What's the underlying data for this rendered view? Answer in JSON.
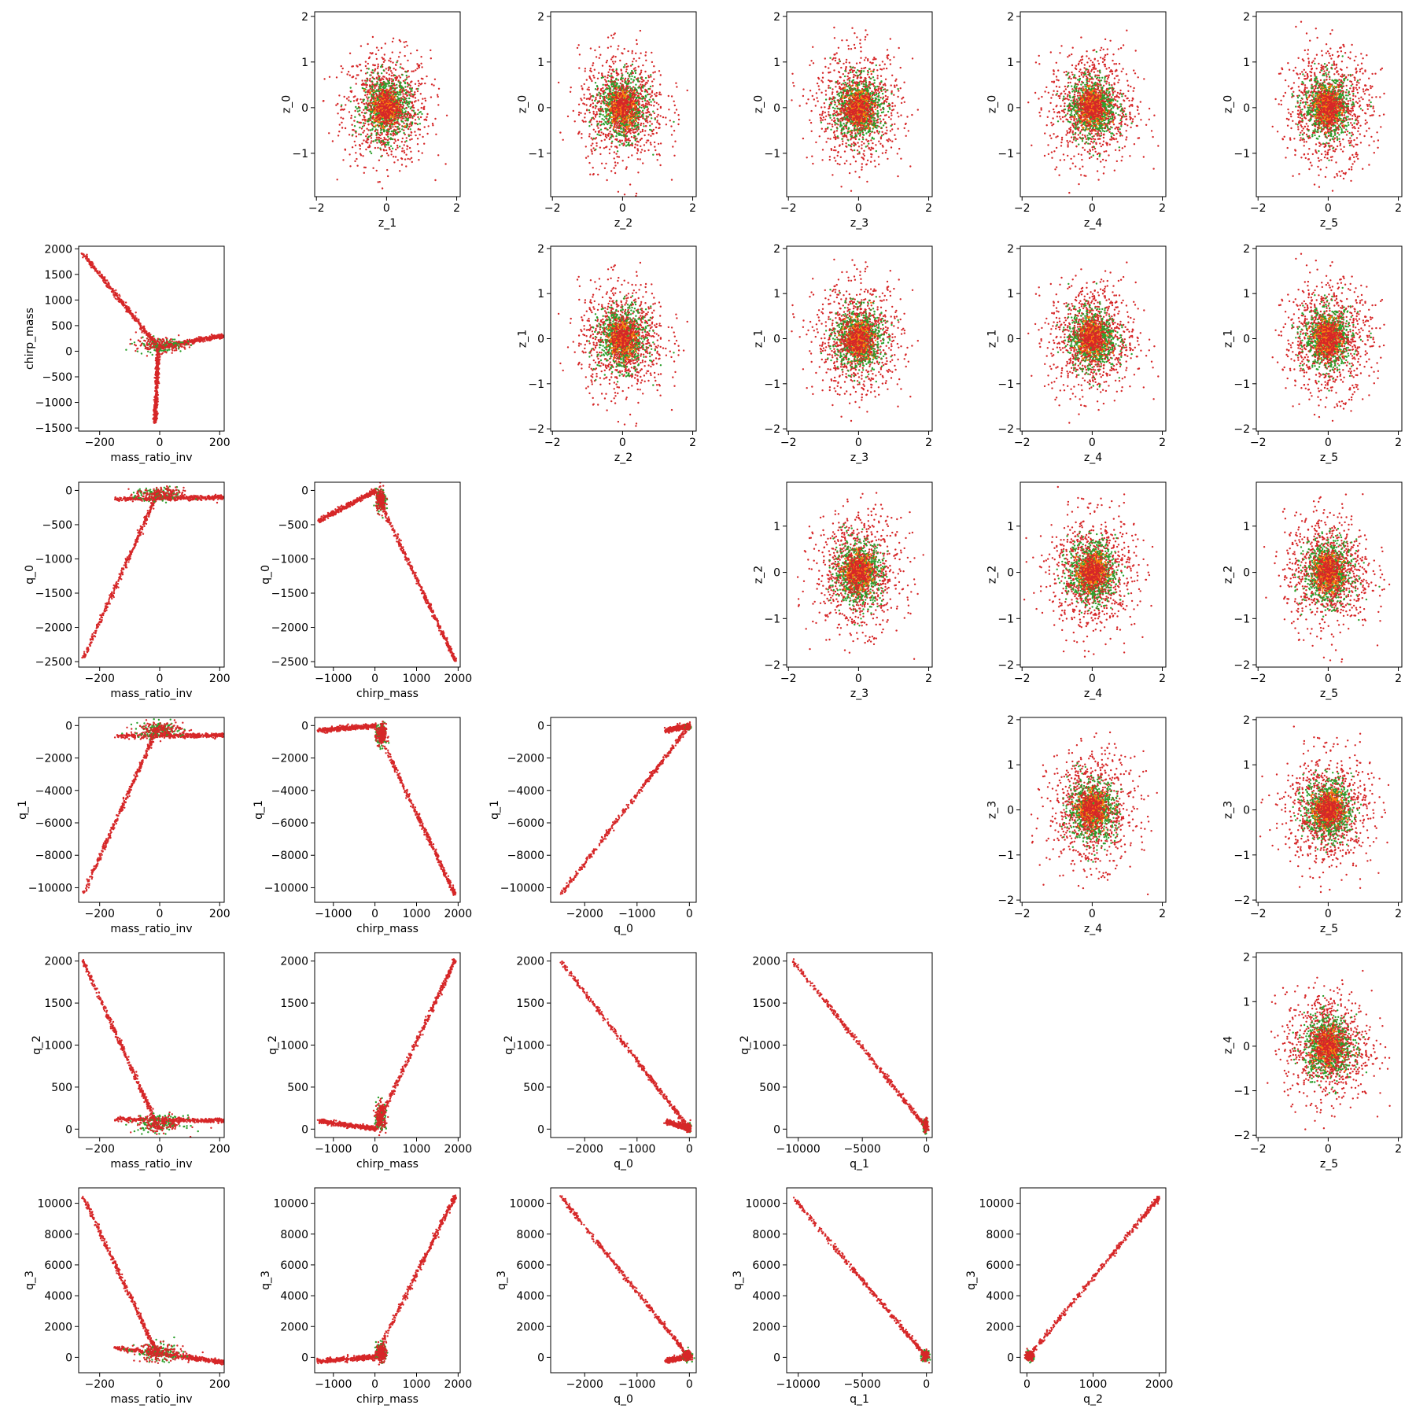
{
  "colors": {
    "red": "#d62728",
    "green": "#2ca02c",
    "orange": "#ff7f0e"
  },
  "chart_data": [
    {
      "type": "scatter",
      "row": 0,
      "col": 1,
      "xlabel": "z_1",
      "ylabel": "z_0",
      "xlim": [
        -2.05,
        2.1
      ],
      "ylim": [
        -1.95,
        2.1
      ],
      "xticks": [
        -2,
        0,
        2
      ],
      "yticks": [
        -1,
        0,
        1,
        2
      ],
      "pattern": "blob",
      "spread": [
        0.62,
        0.62
      ]
    },
    {
      "type": "scatter",
      "row": 0,
      "col": 2,
      "xlabel": "z_2",
      "ylabel": "z_0",
      "xlim": [
        -2.05,
        2.1
      ],
      "ylim": [
        -1.95,
        2.1
      ],
      "xticks": [
        -2,
        0,
        2
      ],
      "yticks": [
        -1,
        0,
        1,
        2
      ],
      "pattern": "blob",
      "spread": [
        0.62,
        0.62
      ]
    },
    {
      "type": "scatter",
      "row": 0,
      "col": 3,
      "xlabel": "z_3",
      "ylabel": "z_0",
      "xlim": [
        -2.05,
        2.1
      ],
      "ylim": [
        -1.95,
        2.1
      ],
      "xticks": [
        -2,
        0,
        2
      ],
      "yticks": [
        -1,
        0,
        1,
        2
      ],
      "pattern": "blob",
      "spread": [
        0.62,
        0.62
      ]
    },
    {
      "type": "scatter",
      "row": 0,
      "col": 4,
      "xlabel": "z_4",
      "ylabel": "z_0",
      "xlim": [
        -2.05,
        2.1
      ],
      "ylim": [
        -1.95,
        2.1
      ],
      "xticks": [
        -2,
        0,
        2
      ],
      "yticks": [
        -1,
        0,
        1,
        2
      ],
      "pattern": "blob",
      "spread": [
        0.62,
        0.62
      ]
    },
    {
      "type": "scatter",
      "row": 0,
      "col": 5,
      "xlabel": "z_5",
      "ylabel": "z_0",
      "xlim": [
        -2.05,
        2.1
      ],
      "ylim": [
        -1.95,
        2.1
      ],
      "xticks": [
        -2,
        0,
        2
      ],
      "yticks": [
        -1,
        0,
        1,
        2
      ],
      "pattern": "blob",
      "spread": [
        0.62,
        0.62
      ]
    },
    {
      "type": "scatter",
      "row": 1,
      "col": 0,
      "xlabel": "mass_ratio_inv",
      "ylabel": "chirp_mass",
      "xlim": [
        -270,
        215
      ],
      "ylim": [
        -1560,
        2050
      ],
      "xticks": [
        -200,
        0,
        200
      ],
      "yticks": [
        -1500,
        -1000,
        -500,
        0,
        500,
        1000,
        1500,
        2000
      ],
      "pattern": "lines",
      "segments": [
        {
          "from": [
            -255,
            1900
          ],
          "to": [
            -5,
            80
          ]
        },
        {
          "from": [
            -5,
            60
          ],
          "to": [
            -15,
            -1370
          ]
        },
        {
          "from": [
            -5,
            80
          ],
          "to": [
            210,
            300
          ]
        }
      ],
      "cluster": {
        "center": [
          0,
          120
        ],
        "spread": [
          40,
          70
        ]
      }
    },
    {
      "type": "scatter",
      "row": 1,
      "col": 2,
      "xlabel": "z_2",
      "ylabel": "z_1",
      "xlim": [
        -2.05,
        2.1
      ],
      "ylim": [
        -2.05,
        2.05
      ],
      "xticks": [
        -2,
        0,
        2
      ],
      "yticks": [
        -2,
        -1,
        0,
        1,
        2
      ],
      "pattern": "blob",
      "spread": [
        0.62,
        0.62
      ]
    },
    {
      "type": "scatter",
      "row": 1,
      "col": 3,
      "xlabel": "z_3",
      "ylabel": "z_1",
      "xlim": [
        -2.05,
        2.1
      ],
      "ylim": [
        -2.05,
        2.05
      ],
      "xticks": [
        -2,
        0,
        2
      ],
      "yticks": [
        -2,
        -1,
        0,
        1,
        2
      ],
      "pattern": "blob",
      "spread": [
        0.62,
        0.62
      ]
    },
    {
      "type": "scatter",
      "row": 1,
      "col": 4,
      "xlabel": "z_4",
      "ylabel": "z_1",
      "xlim": [
        -2.05,
        2.1
      ],
      "ylim": [
        -2.05,
        2.05
      ],
      "xticks": [
        -2,
        0,
        2
      ],
      "yticks": [
        -2,
        -1,
        0,
        1,
        2
      ],
      "pattern": "blob",
      "spread": [
        0.62,
        0.62
      ]
    },
    {
      "type": "scatter",
      "row": 1,
      "col": 5,
      "xlabel": "z_5",
      "ylabel": "z_1",
      "xlim": [
        -2.05,
        2.1
      ],
      "ylim": [
        -2.05,
        2.05
      ],
      "xticks": [
        -2,
        0,
        2
      ],
      "yticks": [
        -2,
        -1,
        0,
        1,
        2
      ],
      "pattern": "blob",
      "spread": [
        0.62,
        0.62
      ]
    },
    {
      "type": "scatter",
      "row": 2,
      "col": 0,
      "xlabel": "mass_ratio_inv",
      "ylabel": "q_0",
      "xlim": [
        -270,
        215
      ],
      "ylim": [
        -2580,
        120
      ],
      "xticks": [
        -200,
        0,
        200
      ],
      "yticks": [
        -2500,
        -2000,
        -1500,
        -1000,
        -500,
        0
      ],
      "pattern": "lines",
      "segments": [
        {
          "from": [
            -255,
            -2450
          ],
          "to": [
            -5,
            -30
          ]
        },
        {
          "from": [
            -150,
            -130
          ],
          "to": [
            210,
            -100
          ]
        }
      ],
      "cluster": {
        "center": [
          0,
          -60
        ],
        "spread": [
          40,
          50
        ]
      }
    },
    {
      "type": "scatter",
      "row": 2,
      "col": 1,
      "xlabel": "chirp_mass",
      "ylabel": "q_0",
      "xlim": [
        -1450,
        2050
      ],
      "ylim": [
        -2580,
        120
      ],
      "xticks": [
        -1000,
        0,
        1000,
        2000
      ],
      "yticks": [
        -2500,
        -2000,
        -1500,
        -1000,
        -500,
        0
      ],
      "pattern": "lines",
      "segments": [
        {
          "from": [
            -1370,
            -450
          ],
          "to": [
            0,
            -10
          ]
        },
        {
          "from": [
            0,
            -10
          ],
          "to": [
            1920,
            -2470
          ]
        }
      ],
      "cluster": {
        "center": [
          150,
          -150
        ],
        "spread": [
          60,
          80
        ]
      }
    },
    {
      "type": "scatter",
      "row": 2,
      "col": 3,
      "xlabel": "z_3",
      "ylabel": "z_2",
      "xlim": [
        -2.05,
        2.1
      ],
      "ylim": [
        -2.05,
        1.95
      ],
      "xticks": [
        -2,
        0,
        2
      ],
      "yticks": [
        -2,
        -1,
        0,
        1
      ],
      "pattern": "blob",
      "spread": [
        0.62,
        0.62
      ]
    },
    {
      "type": "scatter",
      "row": 2,
      "col": 4,
      "xlabel": "z_4",
      "ylabel": "z_2",
      "xlim": [
        -2.05,
        2.1
      ],
      "ylim": [
        -2.05,
        1.95
      ],
      "xticks": [
        -2,
        0,
        2
      ],
      "yticks": [
        -2,
        -1,
        0,
        1
      ],
      "pattern": "blob",
      "spread": [
        0.62,
        0.62
      ]
    },
    {
      "type": "scatter",
      "row": 2,
      "col": 5,
      "xlabel": "z_5",
      "ylabel": "z_2",
      "xlim": [
        -2.05,
        2.1
      ],
      "ylim": [
        -2.05,
        1.95
      ],
      "xticks": [
        -2,
        0,
        2
      ],
      "yticks": [
        -2,
        -1,
        0,
        1
      ],
      "pattern": "blob",
      "spread": [
        0.62,
        0.62
      ]
    },
    {
      "type": "scatter",
      "row": 3,
      "col": 0,
      "xlabel": "mass_ratio_inv",
      "ylabel": "q_1",
      "xlim": [
        -270,
        215
      ],
      "ylim": [
        -10900,
        500
      ],
      "xticks": [
        -200,
        0,
        200
      ],
      "yticks": [
        -10000,
        -8000,
        -6000,
        -4000,
        -2000,
        0
      ],
      "pattern": "lines",
      "segments": [
        {
          "from": [
            -255,
            -10400
          ],
          "to": [
            -5,
            -50
          ]
        },
        {
          "from": [
            -150,
            -650
          ],
          "to": [
            210,
            -600
          ]
        }
      ],
      "cluster": {
        "center": [
          0,
          -250
        ],
        "spread": [
          40,
          250
        ]
      }
    },
    {
      "type": "scatter",
      "row": 3,
      "col": 1,
      "xlabel": "chirp_mass",
      "ylabel": "q_1",
      "xlim": [
        -1450,
        2050
      ],
      "ylim": [
        -10900,
        500
      ],
      "xticks": [
        -1000,
        0,
        1000,
        2000
      ],
      "yticks": [
        -10000,
        -8000,
        -6000,
        -4000,
        -2000,
        0
      ],
      "pattern": "lines",
      "segments": [
        {
          "from": [
            -1370,
            -300
          ],
          "to": [
            0,
            -20
          ]
        },
        {
          "from": [
            0,
            -20
          ],
          "to": [
            1920,
            -10400
          ]
        }
      ],
      "cluster": {
        "center": [
          150,
          -600
        ],
        "spread": [
          60,
          350
        ]
      }
    },
    {
      "type": "scatter",
      "row": 3,
      "col": 2,
      "xlabel": "q_0",
      "ylabel": "q_1",
      "xlim": [
        -2650,
        130
      ],
      "ylim": [
        -10900,
        500
      ],
      "xticks": [
        -2000,
        -1000,
        0
      ],
      "yticks": [
        -10000,
        -8000,
        -6000,
        -4000,
        -2000,
        0
      ],
      "pattern": "lines",
      "segments": [
        {
          "from": [
            -2450,
            -10400
          ],
          "to": [
            -10,
            -20
          ]
        },
        {
          "from": [
            -450,
            -300
          ],
          "to": [
            -10,
            -20
          ]
        }
      ],
      "cluster": {
        "center": [
          -20,
          -80
        ],
        "spread": [
          20,
          60
        ]
      }
    },
    {
      "type": "scatter",
      "row": 3,
      "col": 4,
      "xlabel": "z_4",
      "ylabel": "z_3",
      "xlim": [
        -2.05,
        2.1
      ],
      "ylim": [
        -2.05,
        2.05
      ],
      "xticks": [
        -2,
        0,
        2
      ],
      "yticks": [
        -2,
        -1,
        0,
        1,
        2
      ],
      "pattern": "blob",
      "spread": [
        0.62,
        0.62
      ]
    },
    {
      "type": "scatter",
      "row": 3,
      "col": 5,
      "xlabel": "z_5",
      "ylabel": "z_3",
      "xlim": [
        -2.05,
        2.1
      ],
      "ylim": [
        -2.05,
        2.05
      ],
      "xticks": [
        -2,
        0,
        2
      ],
      "yticks": [
        -2,
        -1,
        0,
        1,
        2
      ],
      "pattern": "blob",
      "spread": [
        0.62,
        0.62
      ]
    },
    {
      "type": "scatter",
      "row": 4,
      "col": 0,
      "xlabel": "mass_ratio_inv",
      "ylabel": "q_2",
      "xlim": [
        -270,
        215
      ],
      "ylim": [
        -100,
        2100
      ],
      "xticks": [
        -200,
        0,
        200
      ],
      "yticks": [
        0,
        500,
        1000,
        1500,
        2000
      ],
      "pattern": "lines",
      "segments": [
        {
          "from": [
            -255,
            2000
          ],
          "to": [
            -5,
            20
          ]
        },
        {
          "from": [
            -150,
            120
          ],
          "to": [
            210,
            100
          ]
        }
      ],
      "cluster": {
        "center": [
          0,
          60
        ],
        "spread": [
          40,
          50
        ]
      }
    },
    {
      "type": "scatter",
      "row": 4,
      "col": 1,
      "xlabel": "chirp_mass",
      "ylabel": "q_2",
      "xlim": [
        -1450,
        2050
      ],
      "ylim": [
        -100,
        2100
      ],
      "xticks": [
        -1000,
        0,
        1000,
        2000
      ],
      "yticks": [
        0,
        500,
        1000,
        1500,
        2000
      ],
      "pattern": "lines",
      "segments": [
        {
          "from": [
            -1370,
            95
          ],
          "to": [
            0,
            5
          ]
        },
        {
          "from": [
            0,
            5
          ],
          "to": [
            1920,
            2000
          ]
        }
      ],
      "cluster": {
        "center": [
          150,
          150
        ],
        "spread": [
          60,
          80
        ]
      }
    },
    {
      "type": "scatter",
      "row": 4,
      "col": 2,
      "xlabel": "q_0",
      "ylabel": "q_2",
      "xlim": [
        -2650,
        130
      ],
      "ylim": [
        -100,
        2100
      ],
      "xticks": [
        -2000,
        -1000,
        0
      ],
      "yticks": [
        0,
        500,
        1000,
        1500,
        2000
      ],
      "pattern": "lines",
      "segments": [
        {
          "from": [
            -2450,
            1990
          ],
          "to": [
            -10,
            10
          ]
        },
        {
          "from": [
            -450,
            90
          ],
          "to": [
            -10,
            10
          ]
        }
      ],
      "cluster": {
        "center": [
          -20,
          20
        ],
        "spread": [
          20,
          20
        ]
      }
    },
    {
      "type": "scatter",
      "row": 4,
      "col": 3,
      "xlabel": "q_1",
      "ylabel": "q_2",
      "xlim": [
        -10900,
        450
      ],
      "ylim": [
        -100,
        2100
      ],
      "xticks": [
        -10000,
        -5000,
        0
      ],
      "yticks": [
        0,
        500,
        1000,
        1500,
        2000
      ],
      "pattern": "lines",
      "segments": [
        {
          "from": [
            -10400,
            2000
          ],
          "to": [
            -30,
            20
          ]
        }
      ],
      "cluster": {
        "center": [
          -60,
          40
        ],
        "spread": [
          80,
          40
        ]
      }
    },
    {
      "type": "scatter",
      "row": 4,
      "col": 5,
      "xlabel": "z_5",
      "ylabel": "z_4",
      "xlim": [
        -2.05,
        2.1
      ],
      "ylim": [
        -2.05,
        2.1
      ],
      "xticks": [
        -2,
        0,
        2
      ],
      "yticks": [
        -2,
        -1,
        0,
        1,
        2
      ],
      "pattern": "blob",
      "spread": [
        0.62,
        0.62
      ]
    },
    {
      "type": "scatter",
      "row": 5,
      "col": 0,
      "xlabel": "mass_ratio_inv",
      "ylabel": "q_3",
      "xlim": [
        -270,
        215
      ],
      "ylim": [
        -1000,
        11000
      ],
      "xticks": [
        -200,
        0,
        200
      ],
      "yticks": [
        0,
        2000,
        4000,
        6000,
        8000,
        10000
      ],
      "pattern": "lines",
      "segments": [
        {
          "from": [
            -255,
            10400
          ],
          "to": [
            -5,
            100
          ]
        },
        {
          "from": [
            -150,
            600
          ],
          "to": [
            210,
            -300
          ]
        }
      ],
      "cluster": {
        "center": [
          0,
          300
        ],
        "spread": [
          40,
          300
        ]
      }
    },
    {
      "type": "scatter",
      "row": 5,
      "col": 1,
      "xlabel": "chirp_mass",
      "ylabel": "q_3",
      "xlim": [
        -1450,
        2050
      ],
      "ylim": [
        -1000,
        11000
      ],
      "xticks": [
        -1000,
        0,
        1000,
        2000
      ],
      "yticks": [
        0,
        2000,
        4000,
        6000,
        8000,
        10000
      ],
      "pattern": "lines",
      "segments": [
        {
          "from": [
            -1370,
            -250
          ],
          "to": [
            0,
            20
          ]
        },
        {
          "from": [
            0,
            20
          ],
          "to": [
            1920,
            10400
          ]
        }
      ],
      "cluster": {
        "center": [
          150,
          300
        ],
        "spread": [
          60,
          300
        ]
      }
    },
    {
      "type": "scatter",
      "row": 5,
      "col": 2,
      "xlabel": "q_0",
      "ylabel": "q_3",
      "xlim": [
        -2650,
        130
      ],
      "ylim": [
        -1000,
        11000
      ],
      "xticks": [
        -2000,
        -1000,
        0
      ],
      "yticks": [
        0,
        2000,
        4000,
        6000,
        8000,
        10000
      ],
      "pattern": "lines",
      "segments": [
        {
          "from": [
            -2450,
            10400
          ],
          "to": [
            -10,
            50
          ]
        },
        {
          "from": [
            -450,
            -250
          ],
          "to": [
            -10,
            50
          ]
        }
      ],
      "cluster": {
        "center": [
          -40,
          100
        ],
        "spread": [
          40,
          150
        ]
      }
    },
    {
      "type": "scatter",
      "row": 5,
      "col": 3,
      "xlabel": "q_1",
      "ylabel": "q_3",
      "xlim": [
        -10900,
        450
      ],
      "ylim": [
        -1000,
        11000
      ],
      "xticks": [
        -10000,
        -5000,
        0
      ],
      "yticks": [
        0,
        2000,
        4000,
        6000,
        8000,
        10000
      ],
      "pattern": "lines",
      "segments": [
        {
          "from": [
            -10400,
            10400
          ],
          "to": [
            -30,
            50
          ]
        }
      ],
      "cluster": {
        "center": [
          -100,
          100
        ],
        "spread": [
          120,
          150
        ]
      }
    },
    {
      "type": "scatter",
      "row": 5,
      "col": 4,
      "xlabel": "q_2",
      "ylabel": "q_3",
      "xlim": [
        -100,
        2100
      ],
      "ylim": [
        -1000,
        11000
      ],
      "xticks": [
        0,
        1000,
        2000
      ],
      "yticks": [
        0,
        2000,
        4000,
        6000,
        8000,
        10000
      ],
      "pattern": "lines",
      "segments": [
        {
          "from": [
            20,
            50
          ],
          "to": [
            2000,
            10400
          ]
        }
      ],
      "cluster": {
        "center": [
          40,
          100
        ],
        "spread": [
          30,
          150
        ]
      }
    }
  ]
}
